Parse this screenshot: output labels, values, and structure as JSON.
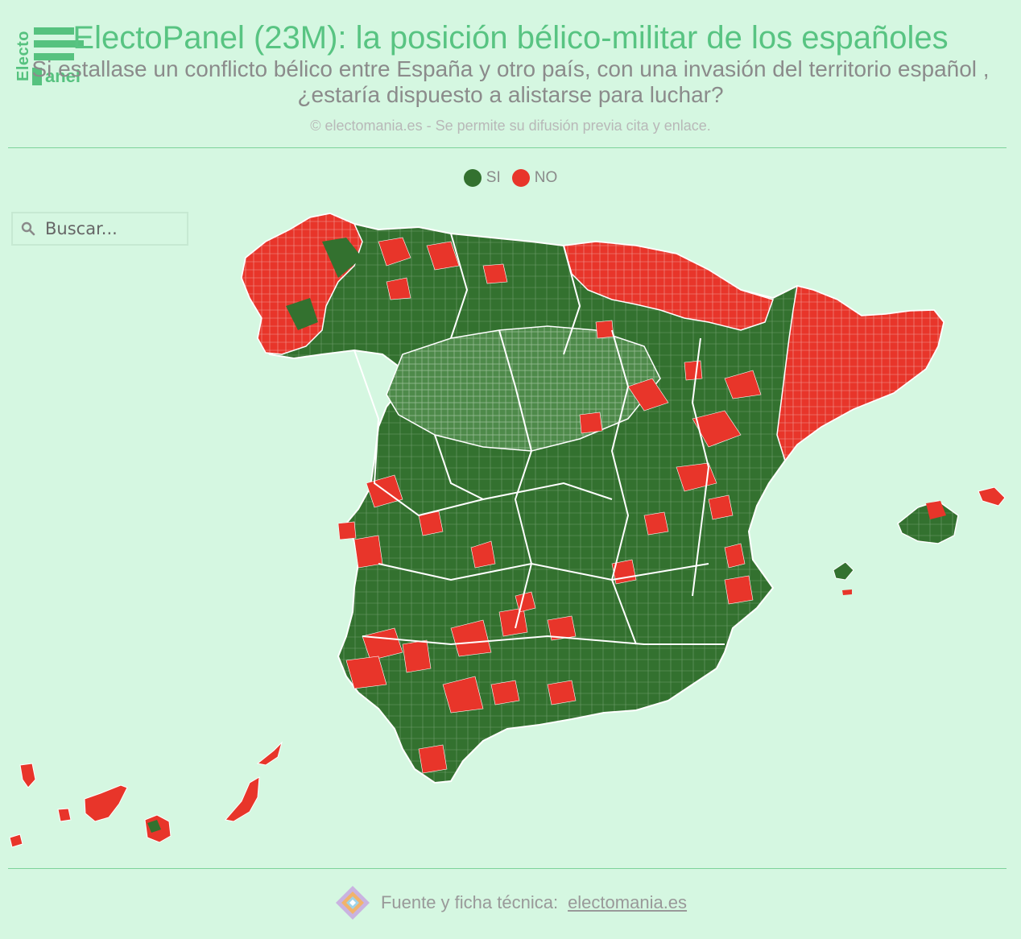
{
  "header": {
    "logo_text_vertical": "Electo",
    "logo_text_bottom": "anel",
    "title": "ElectoPanel (23M): la posición bélico-militar de los españoles",
    "subtitle": "Si estallase un conflicto bélico entre España y otro país, con una invasión del territorio español , ¿estaría dispuesto a alistarse para luchar?",
    "copyright": "© electomania.es - Se permite su difusión previa cita y enlace."
  },
  "legend": {
    "items": [
      {
        "label": "SI",
        "color": "#33712f"
      },
      {
        "label": "NO",
        "color": "#e8352a"
      }
    ]
  },
  "search": {
    "placeholder": "Buscar..."
  },
  "map": {
    "colors": {
      "si": "#33712f",
      "no": "#e8352a",
      "border": "#ffffff"
    },
    "regions": [
      {
        "name": "Galicia",
        "result": "NO"
      },
      {
        "name": "País Vasco",
        "result": "NO"
      },
      {
        "name": "Navarra",
        "result": "NO"
      },
      {
        "name": "Cataluña",
        "result": "NO"
      },
      {
        "name": "Castilla y León",
        "result": "SI"
      },
      {
        "name": "Castilla-La Mancha",
        "result": "SI"
      },
      {
        "name": "Andalucía",
        "result": "SI"
      },
      {
        "name": "Extremadura",
        "result": "SI"
      },
      {
        "name": "Aragón",
        "result": "SI"
      },
      {
        "name": "Valencia",
        "result": "SI"
      },
      {
        "name": "Murcia",
        "result": "SI"
      },
      {
        "name": "Baleares",
        "result": "SI"
      },
      {
        "name": "Canarias",
        "result": "NO"
      }
    ]
  },
  "footer": {
    "source_label": "Fuente y ficha técnica:",
    "source_link": "electomania.es"
  }
}
